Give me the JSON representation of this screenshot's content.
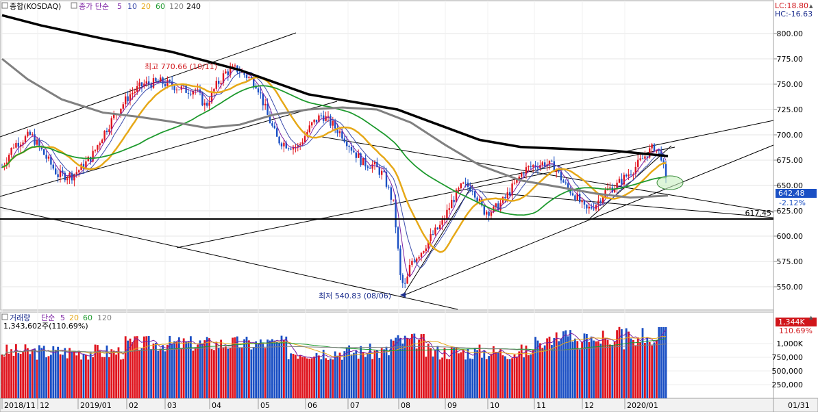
{
  "header": {
    "name": "종합(KOSDAQ)",
    "ma_title": "종가 단순",
    "ma_periods": [
      "5",
      "10",
      "20",
      "60",
      "120",
      "240"
    ],
    "ma_colors": [
      "#7b1fa2",
      "#3949ab",
      "#e6a817",
      "#1e9a2e",
      "#808080",
      "#000000"
    ],
    "lc": "LC:18.80",
    "hc": "HC:-16.63"
  },
  "volume_header": {
    "name": "거래량",
    "ma_title": "단순",
    "ma_periods": [
      "5",
      "20",
      "60",
      "120"
    ],
    "ma_colors": [
      "#7b1fa2",
      "#e6a817",
      "#1e9a2e",
      "#808080"
    ],
    "value_text": "1,343,602주(110.69%)"
  },
  "price_axis": {
    "ticks": [
      "800.00",
      "775.00",
      "750.00",
      "725.00",
      "700.00",
      "675.00",
      "650.00",
      "625.00",
      "600.00",
      "575.00",
      "550.00"
    ],
    "current_price": "642.48",
    "current_change": "-2.12%"
  },
  "volume_axis": {
    "ticks": [
      "1,000K",
      "750,000",
      "500,000",
      "250,000"
    ],
    "current_volume": "1,344K",
    "current_ratio": "110.69%"
  },
  "annotations": {
    "high": "최고 770.66 (10/11)",
    "low": "최저 540.83 (08/06)",
    "hline": "617.45"
  },
  "x_axis": {
    "labels": [
      "2018/11",
      "12",
      "2019/01",
      "02",
      "03",
      "04",
      "05",
      "06",
      "07",
      "08",
      "09",
      "10",
      "11",
      "12",
      "2020/01"
    ],
    "right_label": "01/31"
  },
  "chart_data": {
    "type": "candlestick",
    "title": "종합(KOSDAQ)",
    "y_range": [
      530,
      830
    ],
    "period": "2018/11 – 2020/01 (daily)",
    "key_points": [
      {
        "date": "2018/11",
        "close": 660
      },
      {
        "date": "2018/12",
        "close": 670
      },
      {
        "date": "2019/01",
        "close": 665
      },
      {
        "date": "2019/02",
        "close": 735
      },
      {
        "date": "2019/03",
        "close": 748
      },
      {
        "date": "2019/04",
        "close": 760
      },
      {
        "date": "2019/05",
        "close": 700
      },
      {
        "date": "2019/06",
        "close": 715
      },
      {
        "date": "2019/07",
        "close": 675
      },
      {
        "date": "2019/08",
        "close": 560
      },
      {
        "date": "2019/09",
        "close": 630
      },
      {
        "date": "2019/10",
        "close": 630
      },
      {
        "date": "2019/11",
        "close": 660
      },
      {
        "date": "2019/12",
        "close": 625
      },
      {
        "date": "2020/01",
        "close": 690
      },
      {
        "date": "2020/01/31",
        "close": 642.48
      }
    ],
    "high": {
      "value": 770.66,
      "label": "10/11"
    },
    "low": {
      "value": 540.83,
      "label": "08/06"
    },
    "horizontal_line": 617.45,
    "volume_range": [
      0,
      1400000
    ],
    "last_volume": 1343602
  }
}
